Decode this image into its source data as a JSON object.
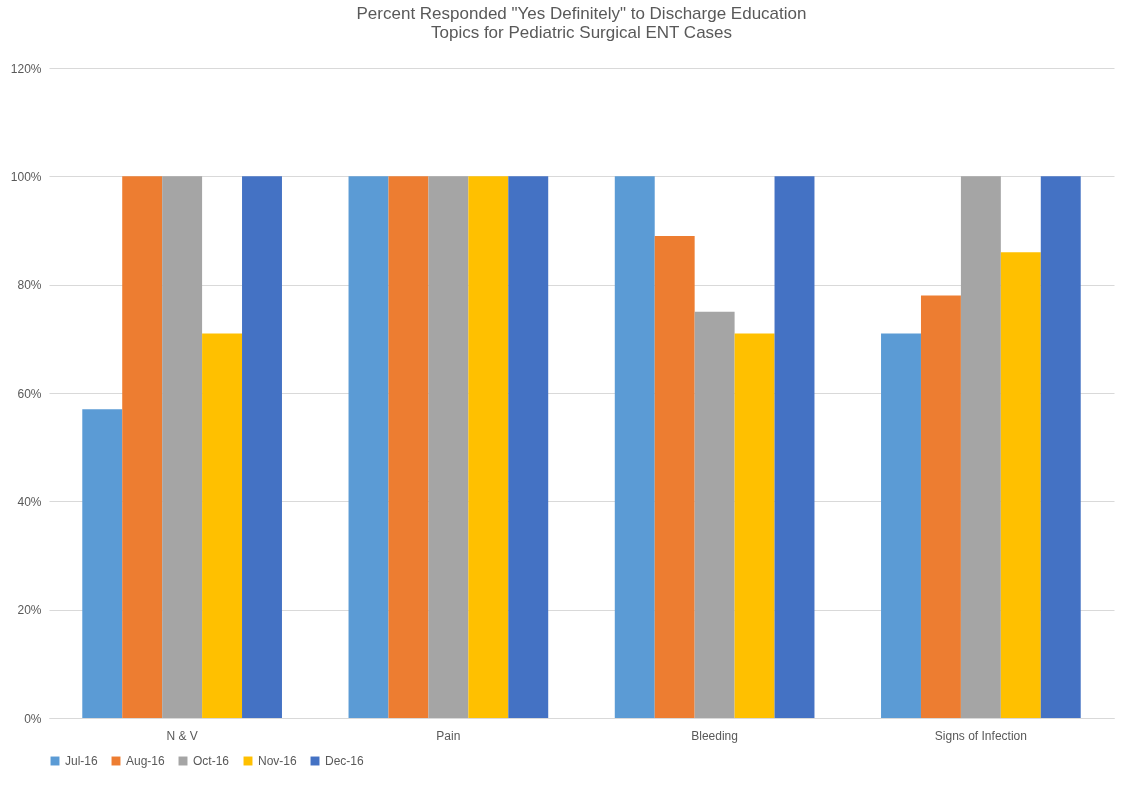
{
  "chart_data": {
    "type": "bar",
    "title": "Percent Responded \"Yes Definitely\" to Discharge Education\nTopics for Pediatric Surgical ENT Cases",
    "categories": [
      "N & V",
      "Pain",
      "Bleeding",
      "Signs of Infection"
    ],
    "series": [
      {
        "name": "Jul-16",
        "color": "#5b9bd5",
        "values": [
          57,
          100,
          100,
          71
        ]
      },
      {
        "name": "Aug-16",
        "color": "#ed7d31",
        "values": [
          100,
          100,
          89,
          78
        ]
      },
      {
        "name": "Oct-16",
        "color": "#a5a5a5",
        "values": [
          100,
          100,
          75,
          100
        ]
      },
      {
        "name": "Nov-16",
        "color": "#ffc000",
        "values": [
          71,
          100,
          71,
          86
        ]
      },
      {
        "name": "Dec-16",
        "color": "#4472c4",
        "values": [
          100,
          100,
          100,
          100
        ]
      }
    ],
    "ylim": [
      0,
      120
    ],
    "yticks": [
      {
        "value": 0,
        "label": "0%"
      },
      {
        "value": 20,
        "label": "20%"
      },
      {
        "value": 40,
        "label": "40%"
      },
      {
        "value": 60,
        "label": "60%"
      },
      {
        "value": 80,
        "label": "80%"
      },
      {
        "value": 100,
        "label": "100%"
      },
      {
        "value": 120,
        "label": "120%"
      }
    ],
    "grid": "y",
    "legend": "bottom"
  }
}
